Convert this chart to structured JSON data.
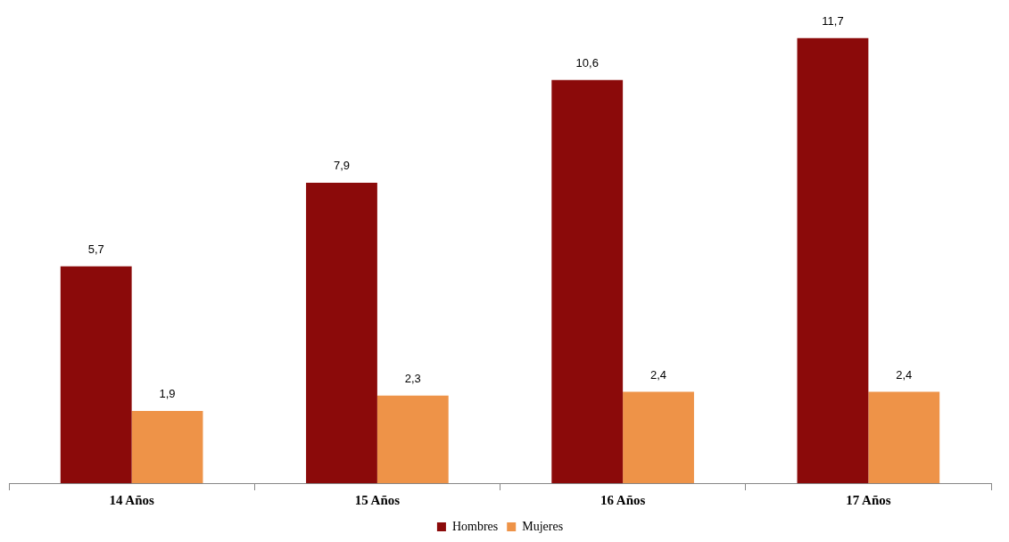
{
  "chart_data": {
    "type": "bar",
    "categories": [
      "14 Años",
      "15 Años",
      "16 Años",
      "17 Años"
    ],
    "series": [
      {
        "name": "Hombres",
        "color": "#8b0a0a",
        "values": [
          5.7,
          7.9,
          10.6,
          11.7
        ],
        "value_labels": [
          "5,7",
          "7,9",
          "10,6",
          "11,7"
        ]
      },
      {
        "name": "Mujeres",
        "color": "#ee9348",
        "values": [
          1.9,
          2.3,
          2.4,
          2.4
        ],
        "value_labels": [
          "1,9",
          "2,3",
          "2,4",
          "2,4"
        ]
      }
    ],
    "legend": "bottom",
    "grid": false
  }
}
